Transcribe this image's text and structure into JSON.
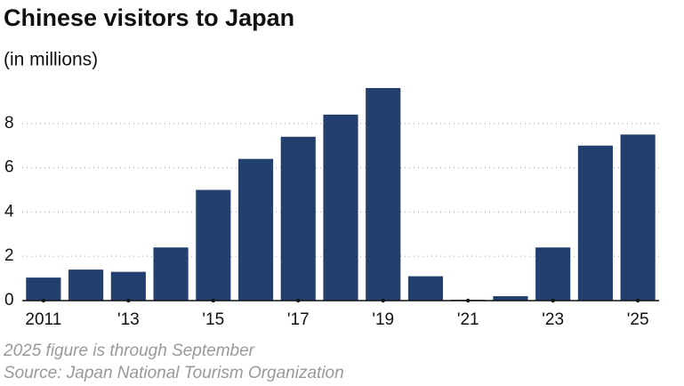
{
  "chart_data": {
    "type": "bar",
    "title": "Chinese visitors to Japan",
    "subtitle": "(in millions)",
    "categories": [
      "2011",
      null,
      "'13",
      null,
      "'15",
      null,
      "'17",
      null,
      "'19",
      null,
      "'21",
      null,
      "'23",
      null,
      "'25"
    ],
    "values": [
      1.04,
      1.4,
      1.3,
      2.4,
      5.0,
      6.4,
      7.4,
      8.4,
      9.6,
      1.1,
      0.04,
      0.2,
      2.4,
      7.0,
      7.5
    ],
    "color": "#233f6e",
    "ylim": [
      0,
      9.8
    ],
    "yticks": [
      0,
      2,
      4,
      6,
      8
    ],
    "grid": true,
    "notes": [
      "2025 figure is through September",
      "Source: Japan National Tourism Organization"
    ]
  }
}
